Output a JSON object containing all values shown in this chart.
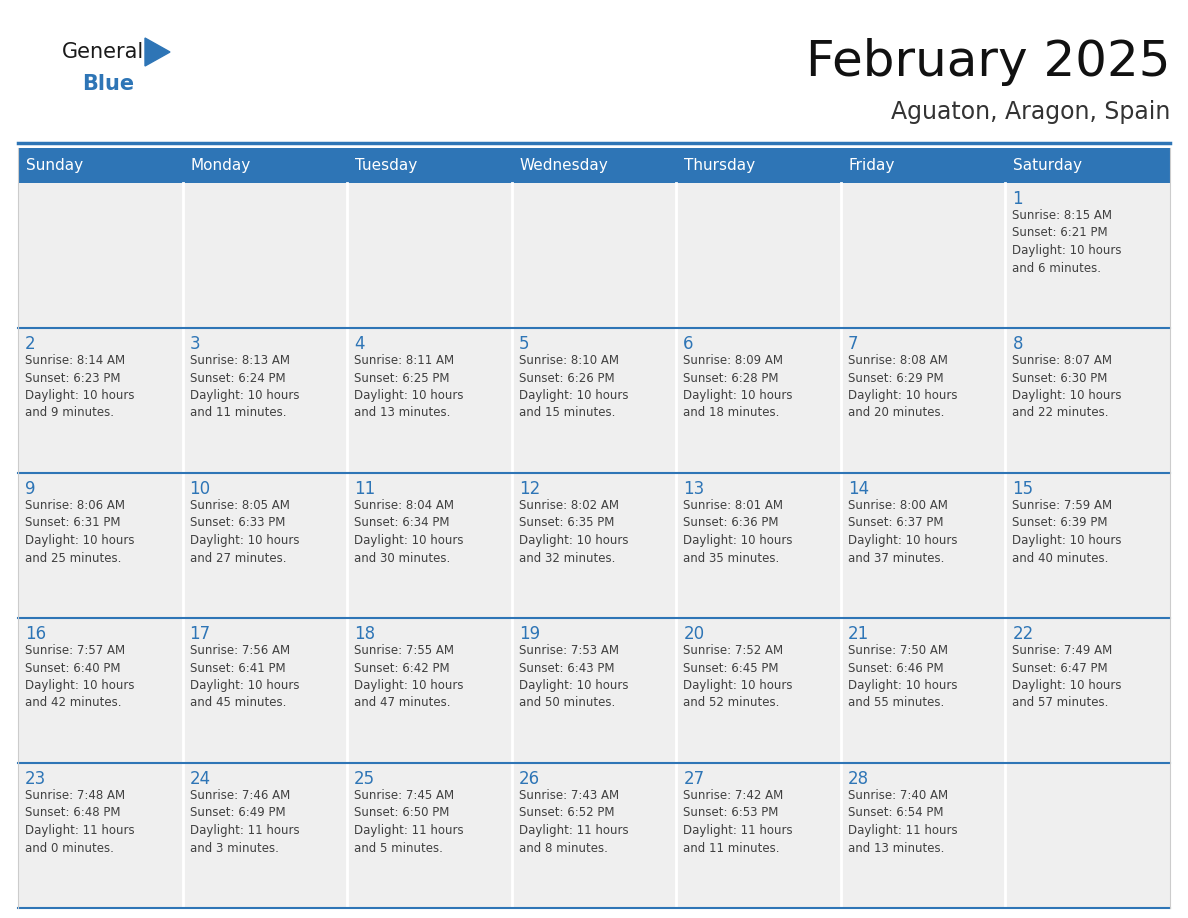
{
  "title": "February 2025",
  "subtitle": "Aguaton, Aragon, Spain",
  "header_color": "#2E75B6",
  "header_text_color": "#FFFFFF",
  "cell_bg_color": "#EFEFEF",
  "day_number_color": "#2E75B6",
  "text_color": "#404040",
  "row_divider_color": "#2E75B6",
  "col_divider_color": "#CCCCCC",
  "days_of_week": [
    "Sunday",
    "Monday",
    "Tuesday",
    "Wednesday",
    "Thursday",
    "Friday",
    "Saturday"
  ],
  "weeks": [
    [
      {
        "day": null,
        "info": null
      },
      {
        "day": null,
        "info": null
      },
      {
        "day": null,
        "info": null
      },
      {
        "day": null,
        "info": null
      },
      {
        "day": null,
        "info": null
      },
      {
        "day": null,
        "info": null
      },
      {
        "day": 1,
        "info": "Sunrise: 8:15 AM\nSunset: 6:21 PM\nDaylight: 10 hours\nand 6 minutes."
      }
    ],
    [
      {
        "day": 2,
        "info": "Sunrise: 8:14 AM\nSunset: 6:23 PM\nDaylight: 10 hours\nand 9 minutes."
      },
      {
        "day": 3,
        "info": "Sunrise: 8:13 AM\nSunset: 6:24 PM\nDaylight: 10 hours\nand 11 minutes."
      },
      {
        "day": 4,
        "info": "Sunrise: 8:11 AM\nSunset: 6:25 PM\nDaylight: 10 hours\nand 13 minutes."
      },
      {
        "day": 5,
        "info": "Sunrise: 8:10 AM\nSunset: 6:26 PM\nDaylight: 10 hours\nand 15 minutes."
      },
      {
        "day": 6,
        "info": "Sunrise: 8:09 AM\nSunset: 6:28 PM\nDaylight: 10 hours\nand 18 minutes."
      },
      {
        "day": 7,
        "info": "Sunrise: 8:08 AM\nSunset: 6:29 PM\nDaylight: 10 hours\nand 20 minutes."
      },
      {
        "day": 8,
        "info": "Sunrise: 8:07 AM\nSunset: 6:30 PM\nDaylight: 10 hours\nand 22 minutes."
      }
    ],
    [
      {
        "day": 9,
        "info": "Sunrise: 8:06 AM\nSunset: 6:31 PM\nDaylight: 10 hours\nand 25 minutes."
      },
      {
        "day": 10,
        "info": "Sunrise: 8:05 AM\nSunset: 6:33 PM\nDaylight: 10 hours\nand 27 minutes."
      },
      {
        "day": 11,
        "info": "Sunrise: 8:04 AM\nSunset: 6:34 PM\nDaylight: 10 hours\nand 30 minutes."
      },
      {
        "day": 12,
        "info": "Sunrise: 8:02 AM\nSunset: 6:35 PM\nDaylight: 10 hours\nand 32 minutes."
      },
      {
        "day": 13,
        "info": "Sunrise: 8:01 AM\nSunset: 6:36 PM\nDaylight: 10 hours\nand 35 minutes."
      },
      {
        "day": 14,
        "info": "Sunrise: 8:00 AM\nSunset: 6:37 PM\nDaylight: 10 hours\nand 37 minutes."
      },
      {
        "day": 15,
        "info": "Sunrise: 7:59 AM\nSunset: 6:39 PM\nDaylight: 10 hours\nand 40 minutes."
      }
    ],
    [
      {
        "day": 16,
        "info": "Sunrise: 7:57 AM\nSunset: 6:40 PM\nDaylight: 10 hours\nand 42 minutes."
      },
      {
        "day": 17,
        "info": "Sunrise: 7:56 AM\nSunset: 6:41 PM\nDaylight: 10 hours\nand 45 minutes."
      },
      {
        "day": 18,
        "info": "Sunrise: 7:55 AM\nSunset: 6:42 PM\nDaylight: 10 hours\nand 47 minutes."
      },
      {
        "day": 19,
        "info": "Sunrise: 7:53 AM\nSunset: 6:43 PM\nDaylight: 10 hours\nand 50 minutes."
      },
      {
        "day": 20,
        "info": "Sunrise: 7:52 AM\nSunset: 6:45 PM\nDaylight: 10 hours\nand 52 minutes."
      },
      {
        "day": 21,
        "info": "Sunrise: 7:50 AM\nSunset: 6:46 PM\nDaylight: 10 hours\nand 55 minutes."
      },
      {
        "day": 22,
        "info": "Sunrise: 7:49 AM\nSunset: 6:47 PM\nDaylight: 10 hours\nand 57 minutes."
      }
    ],
    [
      {
        "day": 23,
        "info": "Sunrise: 7:48 AM\nSunset: 6:48 PM\nDaylight: 11 hours\nand 0 minutes."
      },
      {
        "day": 24,
        "info": "Sunrise: 7:46 AM\nSunset: 6:49 PM\nDaylight: 11 hours\nand 3 minutes."
      },
      {
        "day": 25,
        "info": "Sunrise: 7:45 AM\nSunset: 6:50 PM\nDaylight: 11 hours\nand 5 minutes."
      },
      {
        "day": 26,
        "info": "Sunrise: 7:43 AM\nSunset: 6:52 PM\nDaylight: 11 hours\nand 8 minutes."
      },
      {
        "day": 27,
        "info": "Sunrise: 7:42 AM\nSunset: 6:53 PM\nDaylight: 11 hours\nand 11 minutes."
      },
      {
        "day": 28,
        "info": "Sunrise: 7:40 AM\nSunset: 6:54 PM\nDaylight: 11 hours\nand 13 minutes."
      },
      {
        "day": null,
        "info": null
      }
    ]
  ],
  "logo_text_general": "General",
  "logo_text_blue": "Blue",
  "logo_color_general": "#1A1A1A",
  "logo_color_blue": "#2E75B6",
  "title_fontsize": 36,
  "subtitle_fontsize": 17,
  "header_fontsize": 11,
  "day_num_fontsize": 12,
  "info_fontsize": 8.5
}
